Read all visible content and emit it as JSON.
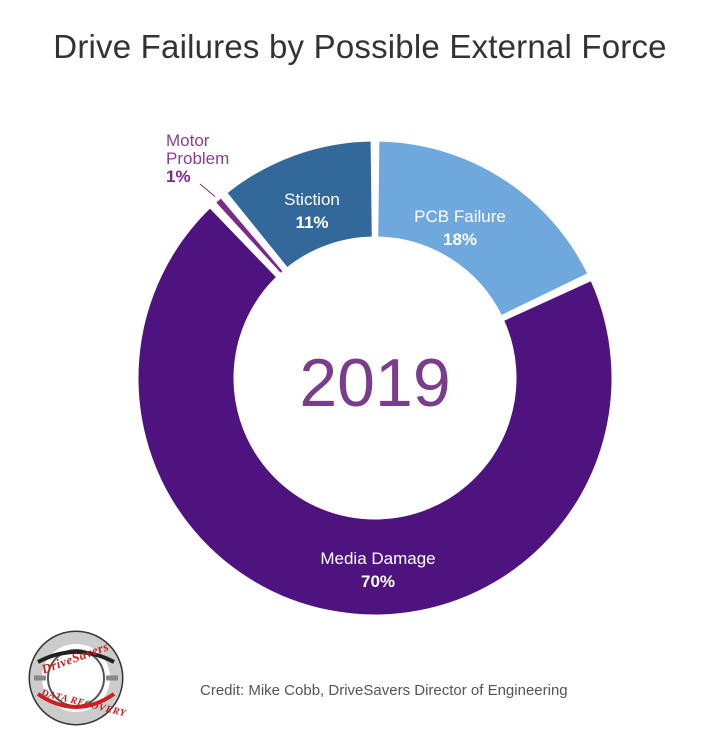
{
  "chart_data": {
    "type": "pie",
    "subtype": "donut",
    "title": "Drive Failures by Possible External Force",
    "center_label": "2019",
    "slices": [
      {
        "name": "PCB Failure",
        "value": 18,
        "label": "18%",
        "color": "#6fa8dc"
      },
      {
        "name": "Media Damage",
        "value": 70,
        "label": "70%",
        "color": "#4f1380"
      },
      {
        "name": "Motor Problem",
        "value": 1,
        "label": "1%",
        "color": "#7b2a8a"
      },
      {
        "name": "Stiction",
        "value": 11,
        "label": "11%",
        "color": "#33689a"
      }
    ],
    "start": "12 o'clock",
    "direction": "clockwise"
  },
  "credit": "Credit: Mike Cobb, DriveSavers Director of Engineering",
  "logo": {
    "brand": "DriveSavers",
    "tagline": "DATA RECOVERY",
    "accent_color": "#cc1f1f"
  }
}
